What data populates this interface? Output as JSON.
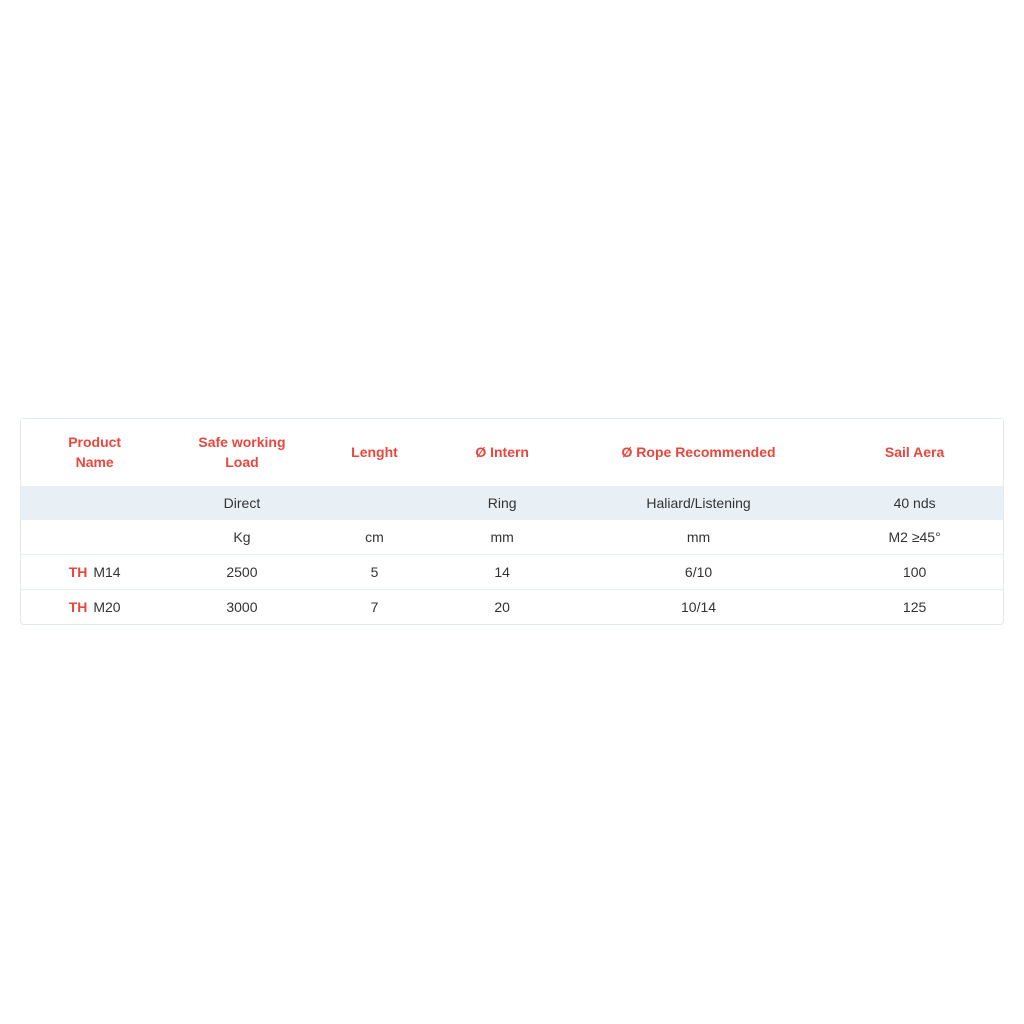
{
  "table": {
    "type": "table",
    "header_color": "#e7473c",
    "th_prefix_color": "#e7473c",
    "row_alt_bg": "#e8f0f6",
    "row_bg": "#ffffff",
    "border_color": "#dfeaf2",
    "text_color": "#333333",
    "background_color": "#ffffff",
    "header_fontsize_pt": 11,
    "body_fontsize_pt": 10.5,
    "column_widths_pct": [
      15,
      15,
      12,
      14,
      26,
      18
    ],
    "columns": [
      {
        "label_line1": "Product",
        "label_line2": "Name"
      },
      {
        "label_line1": "Safe working",
        "label_line2": "Load"
      },
      {
        "label_line1": "",
        "label_line2": "Lenght"
      },
      {
        "label_line1": "",
        "label_line2": "Ø Intern"
      },
      {
        "label_line1": "",
        "label_line2": "Ø Rope Recommended"
      },
      {
        "label_line1": "",
        "label_line2": "Sail Aera"
      }
    ],
    "subheader_rows": [
      [
        "",
        "Direct",
        "",
        "Ring",
        "Haliard/Listening",
        "40 nds"
      ],
      [
        "",
        "Kg",
        "cm",
        "mm",
        "mm",
        "M2 ≥45°"
      ]
    ],
    "data_rows": [
      {
        "prefix": "TH",
        "name": "M14",
        "cells": [
          "2500",
          "5",
          "14",
          "6/10",
          "100"
        ]
      },
      {
        "prefix": "TH",
        "name": "M20",
        "cells": [
          "3000",
          "7",
          "20",
          "10/14",
          "125"
        ]
      }
    ]
  }
}
